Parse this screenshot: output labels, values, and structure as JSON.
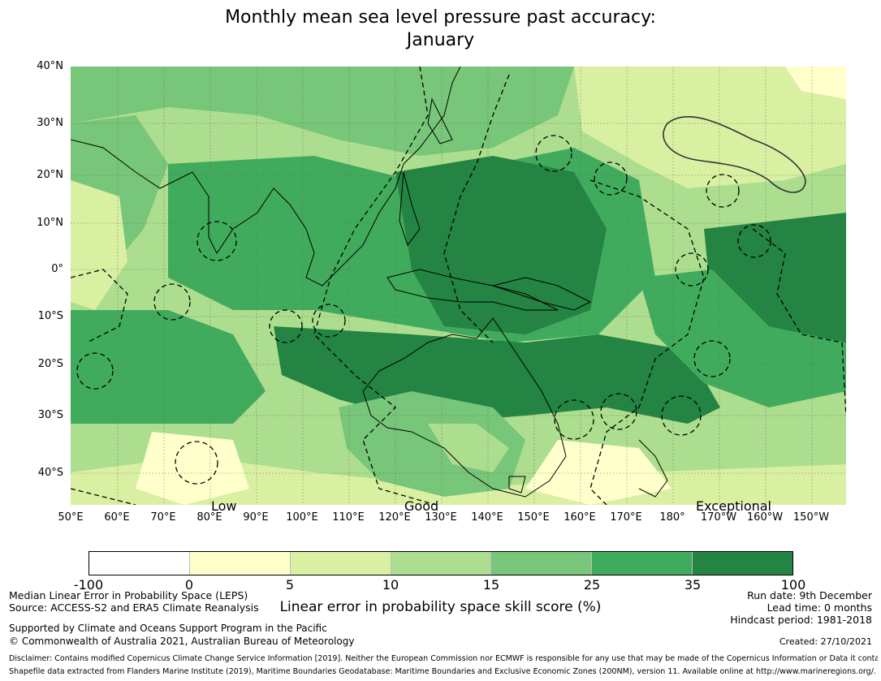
{
  "title": {
    "line1": "Monthly mean sea level pressure past accuracy:",
    "line2": "January"
  },
  "map": {
    "lat_labels": [
      "40°N",
      "30°N",
      "20°N",
      "10°N",
      "0°",
      "10°S",
      "20°S",
      "30°S",
      "40°S"
    ],
    "lon_labels": [
      "50°E",
      "60°E",
      "70°E",
      "80°E",
      "90°E",
      "100°E",
      "110°E",
      "120°E",
      "130°E",
      "140°E",
      "150°E",
      "160°E",
      "170°E",
      "180°",
      "170°W",
      "160°W",
      "150°W"
    ],
    "skill_labels": [
      "Low",
      "Good",
      "Exceptional"
    ]
  },
  "colorbar": {
    "title": "Linear error in probability space skill score (%)",
    "ticks": [
      "-100",
      "0",
      "5",
      "10",
      "15",
      "25",
      "35",
      "100"
    ],
    "colors": [
      "#ffffff",
      "#ffffcc",
      "#d9f0a3",
      "#addd8e",
      "#78c679",
      "#41ab5d",
      "#238443"
    ]
  },
  "info": {
    "method": "Median Linear Error in Probability Space (LEPS)",
    "source": "Source: ACCESS-S2 and ERA5 Climate Reanalysis",
    "support": "Supported by Climate and Oceans Support Program in the Pacific",
    "copyright": "© Commonwealth of Australia 2021, Australian Bureau of Meteorology",
    "run_date": "Run date: 9th December",
    "lead_time": "Lead time: 0 months",
    "hindcast": "Hindcast period: 1981-2018",
    "created": "Created: 27/10/2021",
    "disclaimer": "Disclaimer: Contains modified Copernicus Climate Change Service Information [2019]. Neither the European Commission nor ECMWF is responsible for any use that may be made of the Copernicus Information or Data it contains.",
    "shapefile": "Shapefile data extracted from Flanders Marine Institute (2019), Maritime Boundaries Geodatabase: Maritime Boundaries and Exclusive Economic Zones (200NM), version 11. Available online at http://www.marineregions.org/."
  }
}
